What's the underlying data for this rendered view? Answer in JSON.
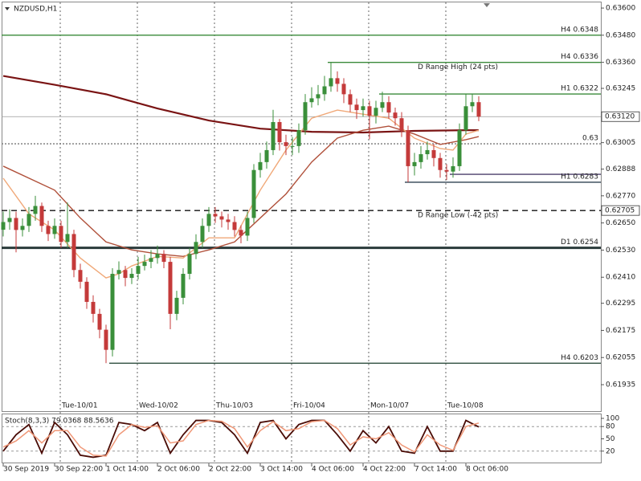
{
  "chart_data": [
    {
      "type": "candlestick",
      "title": "NZDUSD,H1",
      "up_color": "#3a8f3a",
      "down_color": "#c43a3a",
      "ylim": [
        0.61818,
        0.63625
      ],
      "yticks": [
        {
          "value": 0.636,
          "label": "0.63600"
        },
        {
          "value": 0.6348,
          "label": "0.63480"
        },
        {
          "value": 0.6336,
          "label": "0.63360"
        },
        {
          "value": 0.63245,
          "label": "0.63245"
        },
        {
          "value": 0.63005,
          "label": "0.63005"
        },
        {
          "value": 0.62888,
          "label": "0.62888"
        },
        {
          "value": 0.6277,
          "label": "0.62770"
        },
        {
          "value": 0.6265,
          "label": "0.62650"
        },
        {
          "value": 0.6253,
          "label": "0.62530"
        },
        {
          "value": 0.6241,
          "label": "0.62410"
        },
        {
          "value": 0.62295,
          "label": "0.62295"
        },
        {
          "value": 0.62175,
          "label": "0.62175"
        },
        {
          "value": 0.62055,
          "label": "0.62055"
        },
        {
          "value": 0.61935,
          "label": "0.61935"
        }
      ],
      "categories": [
        "30 Sep 2019",
        null,
        null,
        null,
        null,
        null,
        null,
        null,
        "30 Sep 22:00",
        null,
        null,
        null,
        null,
        null,
        null,
        null,
        "1 Oct 14:00",
        null,
        null,
        null,
        null,
        null,
        null,
        null,
        "2 Oct 06:00",
        null,
        null,
        null,
        null,
        null,
        null,
        null,
        "2 Oct 22:00",
        null,
        null,
        null,
        null,
        null,
        null,
        null,
        "3 Oct 14:00",
        null,
        null,
        null,
        null,
        null,
        null,
        null,
        "4 Oct 06:00",
        null,
        null,
        null,
        null,
        null,
        null,
        null,
        "4 Oct 22:00",
        null,
        null,
        null,
        null,
        null,
        null,
        null,
        "7 Oct 14:00",
        null,
        null,
        null,
        null,
        null,
        null,
        null,
        "8 Oct 06:00",
        null,
        null
      ],
      "day_labels": [
        null,
        null,
        null,
        null,
        null,
        null,
        null,
        null,
        null,
        "Tue-10/01",
        null,
        null,
        null,
        null,
        null,
        null,
        null,
        null,
        null,
        null,
        null,
        "Wed-10/02",
        null,
        null,
        null,
        null,
        null,
        null,
        null,
        null,
        null,
        null,
        null,
        "Thu-10/03",
        null,
        null,
        null,
        null,
        null,
        null,
        null,
        null,
        null,
        null,
        null,
        "Fri-10/04",
        null,
        null,
        null,
        null,
        null,
        null,
        null,
        null,
        null,
        null,
        null,
        "Mon-10/07",
        null,
        null,
        null,
        null,
        null,
        null,
        null,
        null,
        null,
        null,
        null,
        "Tue-10/08",
        null,
        null,
        null,
        null,
        null
      ],
      "open": [
        0.6262,
        0.62654,
        0.62672,
        0.62619,
        0.62637,
        0.6269,
        0.62725,
        0.62637,
        0.62601,
        0.62637,
        0.62566,
        0.62601,
        0.62442,
        0.6239,
        0.62301,
        0.62248,
        0.62178,
        0.62089,
        0.62425,
        0.62442,
        0.62407,
        0.62425,
        0.6246,
        0.62478,
        0.62495,
        0.62513,
        0.62478,
        0.62248,
        0.62319,
        0.62425,
        0.62513,
        0.62566,
        0.62637,
        0.6269,
        0.62679,
        0.62665,
        0.62654,
        0.62619,
        0.62594,
        0.62672,
        0.62884,
        0.62919,
        0.62972,
        0.63096,
        0.63007,
        0.6299,
        0.6299,
        0.6306,
        0.63184,
        0.63201,
        0.63219,
        0.63254,
        0.6329,
        0.63265,
        0.63219,
        0.63173,
        0.63149,
        0.63166,
        0.63124,
        0.63159,
        0.63184,
        0.63138,
        0.63113,
        0.6306,
        0.62901,
        0.62919,
        0.62954,
        0.62972,
        0.62937,
        0.62884,
        0.62877,
        0.62901,
        0.6306,
        0.63166,
        0.63184
      ],
      "high": [
        0.627,
        0.6271,
        0.627,
        0.6267,
        0.6272,
        0.6277,
        0.6274,
        0.6266,
        0.6267,
        0.6266,
        0.6274,
        0.6262,
        0.6247,
        0.6241,
        0.6233,
        0.6227,
        0.622,
        0.6245,
        0.6248,
        0.6246,
        0.6245,
        0.625,
        0.6251,
        0.6253,
        0.6255,
        0.6253,
        0.625,
        0.6235,
        0.6245,
        0.6254,
        0.626,
        0.6267,
        0.6272,
        0.6272,
        0.627,
        0.6269,
        0.6268,
        0.6264,
        0.627,
        0.6291,
        0.6296,
        0.6301,
        0.6315,
        0.6311,
        0.6304,
        0.6303,
        0.6309,
        0.6322,
        0.6325,
        0.6326,
        0.633,
        0.6336,
        0.6332,
        0.6329,
        0.6324,
        0.632,
        0.632,
        0.6319,
        0.6319,
        0.6323,
        0.6321,
        0.6316,
        0.6314,
        0.6308,
        0.6296,
        0.6299,
        0.6301,
        0.63,
        0.6296,
        0.6291,
        0.6294,
        0.6309,
        0.6322,
        0.6322,
        0.6321
      ],
      "low": [
        0.6259,
        0.6262,
        0.6252,
        0.6259,
        0.6261,
        0.6266,
        0.6261,
        0.6257,
        0.6258,
        0.6254,
        0.6254,
        0.6241,
        0.6236,
        0.6227,
        0.6221,
        0.6214,
        0.6203,
        0.6206,
        0.624,
        0.6237,
        0.6238,
        0.624,
        0.6244,
        0.6245,
        0.6247,
        0.6245,
        0.6218,
        0.6222,
        0.6229,
        0.624,
        0.6249,
        0.6254,
        0.6261,
        0.6265,
        0.6263,
        0.6262,
        0.6259,
        0.6256,
        0.6257,
        0.6265,
        0.6285,
        0.6289,
        0.6295,
        0.6297,
        0.6295,
        0.6295,
        0.6296,
        0.6304,
        0.6316,
        0.6317,
        0.6319,
        0.6323,
        0.6323,
        0.6318,
        0.6314,
        0.6311,
        0.6312,
        0.6302,
        0.6309,
        0.6314,
        0.6311,
        0.6308,
        0.6303,
        0.6283,
        0.6286,
        0.6289,
        0.6293,
        0.629,
        0.6285,
        0.6284,
        0.6285,
        0.6288,
        0.6304,
        0.6314,
        0.631
      ],
      "close": [
        0.62654,
        0.62672,
        0.62619,
        0.62637,
        0.6269,
        0.62725,
        0.62637,
        0.62601,
        0.62637,
        0.62566,
        0.62601,
        0.62442,
        0.6239,
        0.62301,
        0.62248,
        0.62178,
        0.62089,
        0.62425,
        0.62442,
        0.62407,
        0.62425,
        0.6246,
        0.62478,
        0.62495,
        0.62513,
        0.62478,
        0.62248,
        0.62319,
        0.62425,
        0.62513,
        0.62566,
        0.62637,
        0.6269,
        0.62679,
        0.62665,
        0.62654,
        0.62619,
        0.62594,
        0.62672,
        0.62884,
        0.62919,
        0.62972,
        0.63096,
        0.63007,
        0.6299,
        0.6299,
        0.6306,
        0.63184,
        0.63201,
        0.63219,
        0.63254,
        0.6329,
        0.63265,
        0.63219,
        0.63173,
        0.63149,
        0.63166,
        0.63124,
        0.63159,
        0.63184,
        0.63138,
        0.63113,
        0.6306,
        0.62901,
        0.62919,
        0.62954,
        0.62972,
        0.62937,
        0.62884,
        0.62877,
        0.62901,
        0.6306,
        0.63166,
        0.63184,
        0.6312
      ],
      "ma": [
        {
          "color": "#7a1414",
          "x": [
            0,
            8,
            16,
            24,
            32,
            40,
            48,
            56,
            64,
            72,
            74
          ],
          "values": [
            0.633,
            0.63261,
            0.63219,
            0.63156,
            0.63103,
            0.63067,
            0.63053,
            0.6305,
            0.63057,
            0.6306,
            0.6306
          ]
        },
        {
          "color": "#b0503a",
          "x": [
            0,
            8,
            12,
            16,
            20,
            24,
            28,
            32,
            36,
            40,
            44,
            48,
            52,
            56,
            60,
            64,
            68,
            72,
            74
          ],
          "values": [
            0.62901,
            0.62795,
            0.62672,
            0.62566,
            0.62531,
            0.62513,
            0.62502,
            0.62531,
            0.62566,
            0.62672,
            0.62778,
            0.62919,
            0.63025,
            0.6306,
            0.63078,
            0.63043,
            0.62997,
            0.63018,
            0.63032
          ]
        },
        {
          "color": "#f0a878",
          "x": [
            0,
            4,
            8,
            12,
            16,
            18,
            20,
            24,
            28,
            32,
            36,
            40,
            44,
            48,
            52,
            56,
            60,
            64,
            68,
            70,
            72,
            74
          ],
          "values": [
            0.62848,
            0.6269,
            0.62619,
            0.62495,
            0.62407,
            0.62425,
            0.6246,
            0.62502,
            0.62495,
            0.62584,
            0.62584,
            0.62795,
            0.62972,
            0.63113,
            0.63149,
            0.63131,
            0.63113,
            0.63025,
            0.62979,
            0.62972,
            0.63043,
            0.6306
          ]
        }
      ],
      "levels": [
        {
          "label": "H4 0.6348",
          "value": 0.6348,
          "from": 0,
          "color": "#3a8a3a",
          "style": "solid"
        },
        {
          "label": "H4 0.6336",
          "value": 0.6336,
          "from": 51,
          "color": "#3a8a3a",
          "style": "solid",
          "note": "D Range High (24 pts)"
        },
        {
          "label": "H1 0.6322",
          "value": 0.6322,
          "from": 59,
          "color": "#3a8a3a",
          "style": "solid"
        },
        {
          "label": "0.63120",
          "value": 0.6312,
          "from": 0,
          "color": "#9a9a9a",
          "style": "thin",
          "boxed": true
        },
        {
          "label": "0.63",
          "value": 0.63,
          "from": 0,
          "color": "#777777",
          "style": "dotted"
        },
        {
          "value": 0.62865,
          "from": 70,
          "color": "#4a3d6b",
          "style": "solid"
        },
        {
          "label": "H1 0.6283",
          "value": 0.6283,
          "from": 63,
          "color": "#2f4050",
          "style": "solid"
        },
        {
          "label": "0.62705",
          "value": 0.62705,
          "from": 0,
          "color": "#111111",
          "style": "dashed",
          "boxed": true,
          "note": "D Range Low (-42 pts)"
        },
        {
          "label": "D1 0.6254",
          "value": 0.6254,
          "from": 0,
          "color": "#2a3a3a",
          "style": "thick"
        },
        {
          "label": "H4 0.6203",
          "value": 0.6203,
          "from": 17,
          "color": "#2f4f3f",
          "style": "solid"
        }
      ]
    },
    {
      "type": "line",
      "title": "Stoch(8,3,3) 79.0368 88.5636",
      "ylim": [
        0,
        100
      ],
      "yticks": [
        100,
        80,
        50,
        20
      ],
      "level_lines": [
        80,
        20
      ],
      "series": [
        {
          "color": "#4a0c06",
          "x": [
            0,
            2,
            4,
            6,
            8,
            10,
            12,
            14,
            16,
            18,
            20,
            22,
            24,
            26,
            28,
            30,
            32,
            34,
            36,
            38,
            40,
            42,
            44,
            46,
            48,
            50,
            52,
            54,
            56,
            58,
            60,
            62,
            64,
            66,
            68,
            70,
            72,
            74
          ],
          "values": [
            20,
            60,
            85,
            15,
            90,
            60,
            10,
            5,
            10,
            90,
            85,
            70,
            90,
            15,
            60,
            95,
            95,
            90,
            60,
            15,
            90,
            95,
            50,
            85,
            95,
            95,
            60,
            20,
            70,
            40,
            80,
            20,
            15,
            80,
            20,
            20,
            95,
            79.0368
          ]
        },
        {
          "color": "#f09878",
          "x": [
            0,
            2,
            4,
            6,
            8,
            10,
            12,
            14,
            16,
            18,
            20,
            22,
            24,
            26,
            28,
            30,
            32,
            34,
            36,
            38,
            40,
            42,
            44,
            46,
            48,
            50,
            52,
            54,
            56,
            58,
            60,
            62,
            64,
            66,
            68,
            70,
            72,
            74
          ],
          "values": [
            30,
            45,
            70,
            40,
            70,
            70,
            30,
            10,
            8,
            60,
            85,
            78,
            82,
            40,
            45,
            85,
            95,
            93,
            75,
            30,
            70,
            92,
            70,
            75,
            92,
            95,
            75,
            35,
            55,
            50,
            65,
            35,
            18,
            60,
            35,
            22,
            80,
            88.5636
          ]
        }
      ]
    }
  ]
}
